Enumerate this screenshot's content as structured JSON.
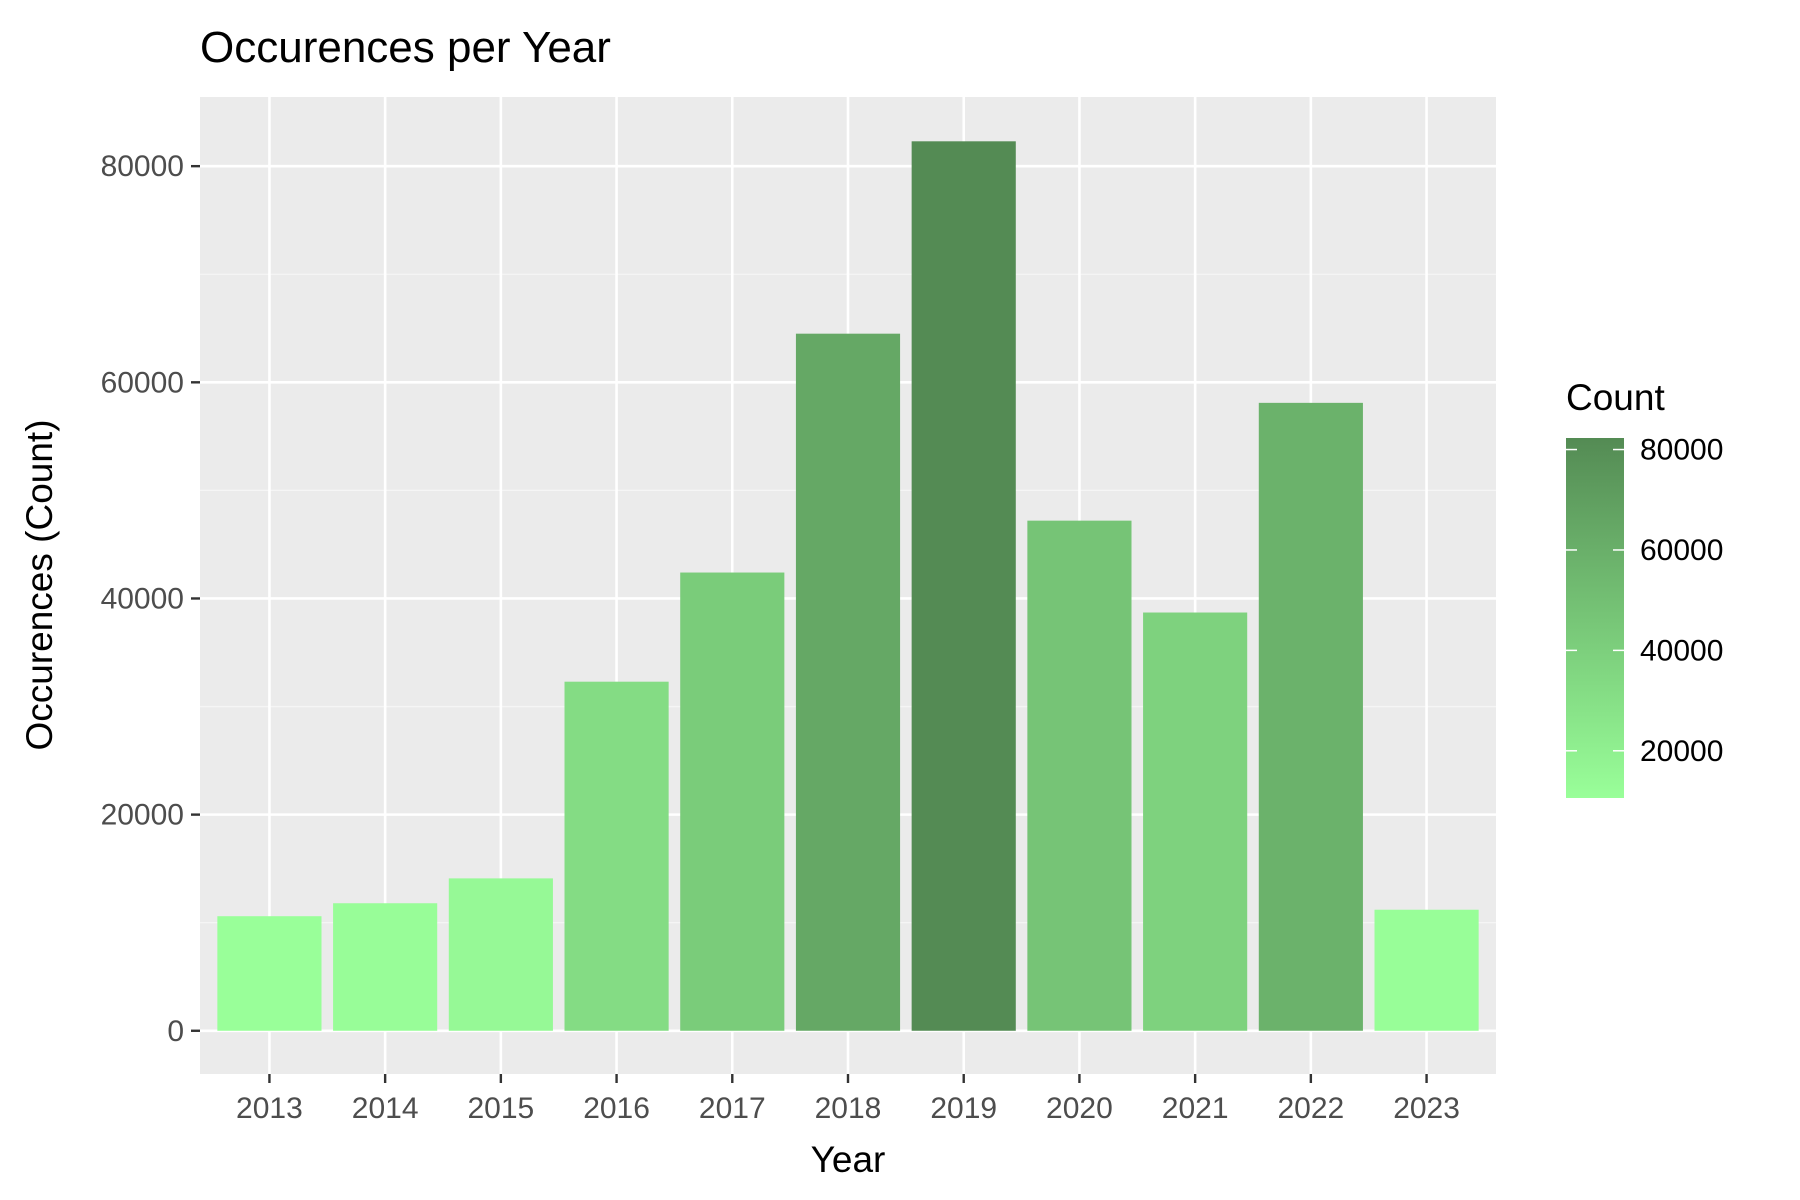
{
  "chart_data": {
    "type": "bar",
    "title": "Occurences per Year",
    "xlabel": "Year",
    "ylabel": "Occurences (Count)",
    "categories": [
      "2013",
      "2014",
      "2015",
      "2016",
      "2017",
      "2018",
      "2019",
      "2020",
      "2021",
      "2022",
      "2023"
    ],
    "values": [
      10600,
      11800,
      14100,
      32300,
      42400,
      64500,
      82300,
      47200,
      38700,
      58100,
      11200
    ],
    "ylim": [
      -4000,
      86400
    ],
    "yticks": [
      0,
      20000,
      40000,
      60000,
      80000
    ],
    "grid": true,
    "legend": {
      "title": "Count",
      "position": "right",
      "ticks": [
        20000,
        40000,
        60000,
        80000
      ],
      "range": [
        10600,
        82300
      ],
      "color_low": "#99ff99",
      "color_high": "#548b54"
    },
    "colors": {
      "panel_background": "#ebebeb",
      "grid_major": "#ffffff",
      "grid_minor": "#f5f5f5"
    }
  }
}
